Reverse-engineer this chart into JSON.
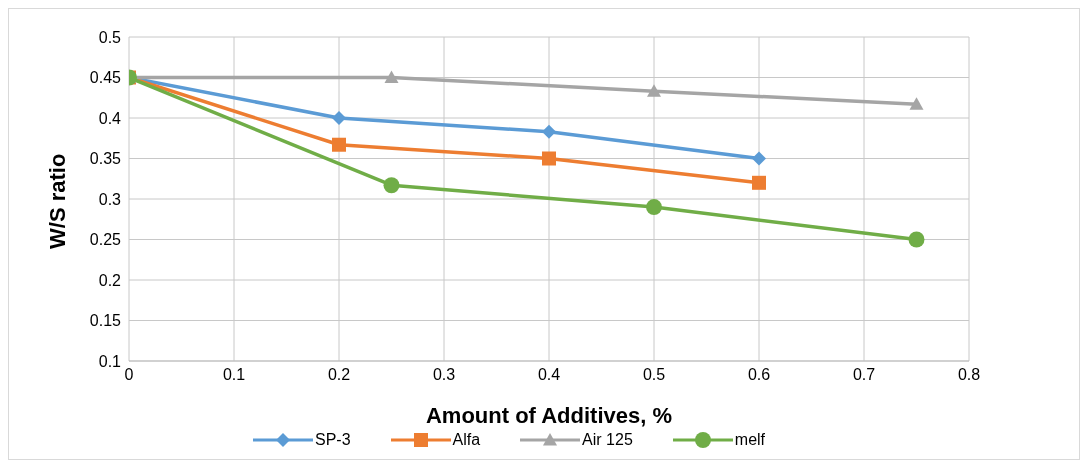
{
  "chart_data": {
    "type": "line",
    "xlabel": "Amount of Additives, %",
    "ylabel": "W/S ratio",
    "xlim": [
      0,
      0.8
    ],
    "xticks": [
      0,
      0.1,
      0.2,
      0.3,
      0.4,
      0.5,
      0.6,
      0.7,
      0.8
    ],
    "ylim": [
      0.1,
      0.5
    ],
    "yticks": [
      0.1,
      0.15,
      0.2,
      0.25,
      0.3,
      0.35,
      0.4,
      0.45,
      0.5
    ],
    "grid": true,
    "legend": "bottom",
    "line_style": "solid",
    "series": [
      {
        "name": "SP-3",
        "color": "#5b9bd5",
        "marker": "diamond",
        "x": [
          0,
          0.2,
          0.4,
          0.6
        ],
        "values": [
          0.45,
          0.4,
          0.383,
          0.35
        ]
      },
      {
        "name": "Alfa",
        "color": "#ed7d31",
        "marker": "square",
        "x": [
          0,
          0.2,
          0.4,
          0.6
        ],
        "values": [
          0.45,
          0.367,
          0.35,
          0.32
        ]
      },
      {
        "name": "Air 125",
        "color": "#a5a5a5",
        "marker": "triangle",
        "x": [
          0,
          0.25,
          0.5,
          0.75
        ],
        "values": [
          0.45,
          0.45,
          0.433,
          0.417
        ]
      },
      {
        "name": "melf",
        "color": "#70ad47",
        "marker": "circle",
        "x": [
          0,
          0.25,
          0.5,
          0.75
        ],
        "values": [
          0.45,
          0.317,
          0.29,
          0.25
        ]
      }
    ]
  }
}
